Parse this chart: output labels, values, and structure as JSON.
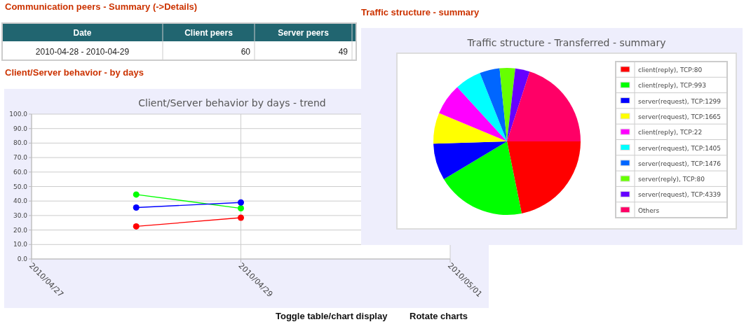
{
  "chart_data": [
    {
      "type": "other",
      "title": "Communication peers - Summary (->Details)",
      "categories": [
        "Date",
        "Client peers",
        "Server peers"
      ],
      "cell_labels": [
        [
          "2010-04-28 - 2010-04-29",
          "60",
          "49"
        ]
      ]
    },
    {
      "type": "line",
      "title": "Client/Server behavior by days - trend",
      "annotations": [
        "Client/Server behavior - by days",
        "Toggle table/chart display",
        "Rotate charts"
      ],
      "x": [
        "2010-04-28",
        "2010-04-29"
      ],
      "xlim": [
        "2010-04-27",
        "2010-05-01"
      ],
      "xticks": [
        {
          "value": "2010-04-27",
          "label": "2010/04/27"
        },
        {
          "value": "2010-04-29",
          "label": "2010/04/29"
        },
        {
          "value": "2010-05-01",
          "label": "2010/05/01"
        }
      ],
      "ylim": [
        0,
        100
      ],
      "yticks": [
        {
          "value": 0,
          "label": "0.0"
        },
        {
          "value": 10,
          "label": "10.0"
        },
        {
          "value": 20,
          "label": "20.0"
        },
        {
          "value": 30,
          "label": "30.0"
        },
        {
          "value": 40,
          "label": "40.0"
        },
        {
          "value": 50,
          "label": "50.0"
        },
        {
          "value": 60,
          "label": "60.0"
        },
        {
          "value": 70,
          "label": "70.0"
        },
        {
          "value": 80,
          "label": "80.0"
        },
        {
          "value": 90,
          "label": "90.0"
        },
        {
          "value": 100,
          "label": "100.0"
        }
      ],
      "grid": true,
      "marker": "circle",
      "series": [
        {
          "color": "#ff0000",
          "values": [
            22.5,
            28.5
          ]
        },
        {
          "color": "#00ff00",
          "values": [
            44.5,
            35
          ]
        },
        {
          "color": "#0000ff",
          "values": [
            35.5,
            39
          ]
        }
      ]
    },
    {
      "type": "pie",
      "title": "Traffic structure - Transferred - summary",
      "annotations": [
        "Traffic structure - summary"
      ],
      "legend": "right",
      "categories": [
        "client(reply), TCP:80",
        "client(reply), TCP:993",
        "server(request), TCP:1299",
        "server(request), TCP:1665",
        "client(reply), TCP:22",
        "server(request), TCP:1405",
        "server(request), TCP:1476",
        "server(reply), TCP:80",
        "server(request), TCP:4339",
        "Others"
      ],
      "values": [
        21.8,
        19.6,
        8.1,
        6.8,
        6.9,
        5.8,
        4.4,
        3.4,
        3.2,
        20
      ],
      "colors": [
        "#ff0000",
        "#00ff00",
        "#0000ff",
        "#ffff00",
        "#ff00ff",
        "#00ffff",
        "#0066ff",
        "#66ff00",
        "#6600ff",
        "#ff0066"
      ]
    }
  ]
}
